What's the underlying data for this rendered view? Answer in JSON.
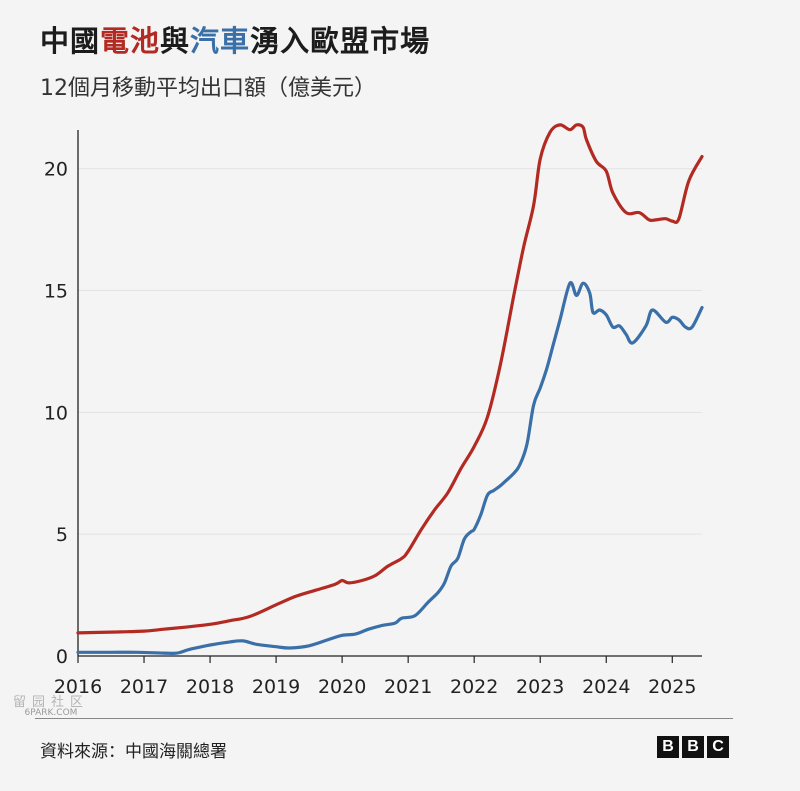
{
  "title": {
    "prefix": "中國",
    "battery": "電池",
    "conj": "與",
    "cars": "汽車",
    "suffix": "湧入歐盟市場"
  },
  "subtitle": "12個月移動平均出口額（億美元）",
  "source": "資料來源：中國海關總署",
  "logo": [
    "B",
    "B",
    "C"
  ],
  "watermark": {
    "han": "留园社区",
    "site": "6PARK.COM"
  },
  "colors": {
    "battery": "#b22a22",
    "cars": "#3a6fa8",
    "grid": "#e2e2e2",
    "axis": "#222222"
  },
  "chart_data": {
    "type": "line",
    "title": "中國電池與汽車湧入歐盟市場",
    "subtitle": "12個月移動平均出口額（億美元）",
    "xlabel": "",
    "ylabel": "",
    "xlim": [
      2016.0,
      2025.45
    ],
    "ylim": [
      0,
      22
    ],
    "y_ticks": [
      0,
      5,
      10,
      15,
      20
    ],
    "x_ticks": [
      2016,
      2017,
      2018,
      2019,
      2020,
      2021,
      2022,
      2023,
      2024,
      2025
    ],
    "grid": "horizontal",
    "legend": "inline title colors",
    "series": [
      {
        "key": "battery",
        "x": [
          2016.0,
          2016.5,
          2017.0,
          2017.3,
          2017.6,
          2018.0,
          2018.3,
          2018.6,
          2019.0,
          2019.3,
          2019.6,
          2019.9,
          2020.0,
          2020.1,
          2020.3,
          2020.5,
          2020.7,
          2020.9,
          2021.0,
          2021.2,
          2021.4,
          2021.6,
          2021.8,
          2022.0,
          2022.2,
          2022.4,
          2022.6,
          2022.75,
          2022.9,
          2023.0,
          2023.15,
          2023.3,
          2023.45,
          2023.55,
          2023.65,
          2023.7,
          2023.85,
          2024.0,
          2024.1,
          2024.3,
          2024.5,
          2024.65,
          2024.75,
          2024.9,
          2025.0,
          2025.1,
          2025.25,
          2025.45
        ],
        "values": [
          0.95,
          0.98,
          1.02,
          1.1,
          1.18,
          1.3,
          1.45,
          1.62,
          2.1,
          2.45,
          2.7,
          2.95,
          3.1,
          3.0,
          3.1,
          3.3,
          3.7,
          4.0,
          4.3,
          5.2,
          6.0,
          6.7,
          7.7,
          8.6,
          9.8,
          12.0,
          14.8,
          16.8,
          18.5,
          20.4,
          21.5,
          21.8,
          21.6,
          21.8,
          21.7,
          21.2,
          20.3,
          19.9,
          19.0,
          18.2,
          18.2,
          17.9,
          17.9,
          17.95,
          17.85,
          17.95,
          19.5,
          20.5
        ]
      },
      {
        "key": "cars",
        "x": [
          2016.0,
          2016.5,
          2016.9,
          2017.3,
          2017.5,
          2017.7,
          2018.0,
          2018.3,
          2018.5,
          2018.7,
          2019.0,
          2019.2,
          2019.5,
          2019.8,
          2020.0,
          2020.2,
          2020.4,
          2020.6,
          2020.8,
          2020.9,
          2021.1,
          2021.3,
          2021.45,
          2021.55,
          2021.65,
          2021.75,
          2021.85,
          2021.95,
          2022.0,
          2022.1,
          2022.2,
          2022.3,
          2022.4,
          2022.6,
          2022.7,
          2022.8,
          2022.9,
          2023.0,
          2023.1,
          2023.2,
          2023.3,
          2023.45,
          2023.55,
          2023.65,
          2023.75,
          2023.8,
          2023.9,
          2024.0,
          2024.1,
          2024.2,
          2024.3,
          2024.4,
          2024.6,
          2024.7,
          2024.9,
          2025.0,
          2025.1,
          2025.2,
          2025.3,
          2025.45
        ],
        "values": [
          0.15,
          0.15,
          0.15,
          0.12,
          0.12,
          0.28,
          0.45,
          0.58,
          0.62,
          0.48,
          0.38,
          0.33,
          0.42,
          0.68,
          0.85,
          0.9,
          1.1,
          1.25,
          1.35,
          1.55,
          1.65,
          2.2,
          2.6,
          3.0,
          3.7,
          4.0,
          4.8,
          5.1,
          5.2,
          5.8,
          6.6,
          6.8,
          7.0,
          7.5,
          7.9,
          8.7,
          10.3,
          11.0,
          11.8,
          12.8,
          13.8,
          15.3,
          14.8,
          15.3,
          14.9,
          14.1,
          14.2,
          14.0,
          13.5,
          13.55,
          13.2,
          12.85,
          13.55,
          14.2,
          13.7,
          13.9,
          13.8,
          13.5,
          13.5,
          14.3
        ]
      }
    ]
  }
}
